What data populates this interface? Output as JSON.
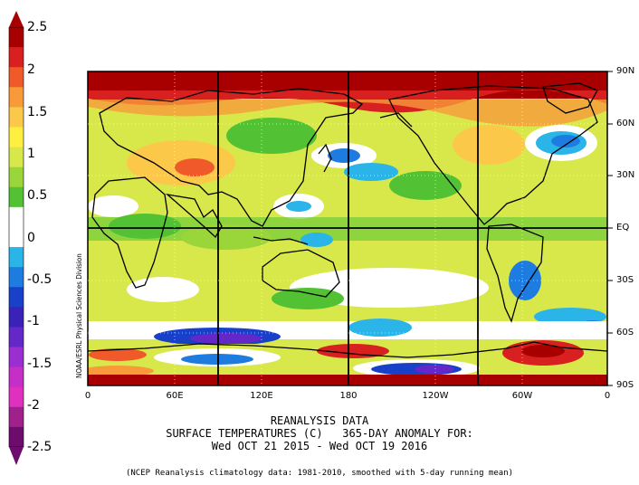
{
  "colorbar": {
    "ticks": [
      "2.5",
      "2",
      "1.5",
      "1",
      "0.5",
      "0",
      "-0.5",
      "-1",
      "-1.5",
      "-2",
      "-2.5"
    ],
    "colors": [
      "#a80000",
      "#d82020",
      "#f05a2a",
      "#f89a3a",
      "#fcc84a",
      "#fff040",
      "#d8e84a",
      "#9ad63a",
      "#52c234",
      "#ffffff",
      "#ffffff",
      "#2ab4e8",
      "#1e7ce0",
      "#1840c8",
      "#3a22b8",
      "#6428c8",
      "#9a2ed0",
      "#c62ec8",
      "#e030c0",
      "#a0208c",
      "#6c0c6c"
    ]
  },
  "map": {
    "lat_labels": [
      "90N",
      "60N",
      "30N",
      "EQ",
      "30S",
      "60S",
      "90S"
    ],
    "lon_labels": [
      "0",
      "60E",
      "120E",
      "180",
      "120W",
      "60W",
      "0"
    ],
    "credit": "NOAA/ESRL Physical Sciences Division"
  },
  "title": {
    "line1": "REANALYSIS DATA",
    "line2": "SURFACE TEMPERATURES (C)   365-DAY ANOMALY FOR:",
    "line3": "Wed OCT 21 2015 - Wed OCT 19 2016"
  },
  "footnote": "(NCEP Reanalysis climatology data: 1981-2010, smoothed with 5-day running mean)"
}
